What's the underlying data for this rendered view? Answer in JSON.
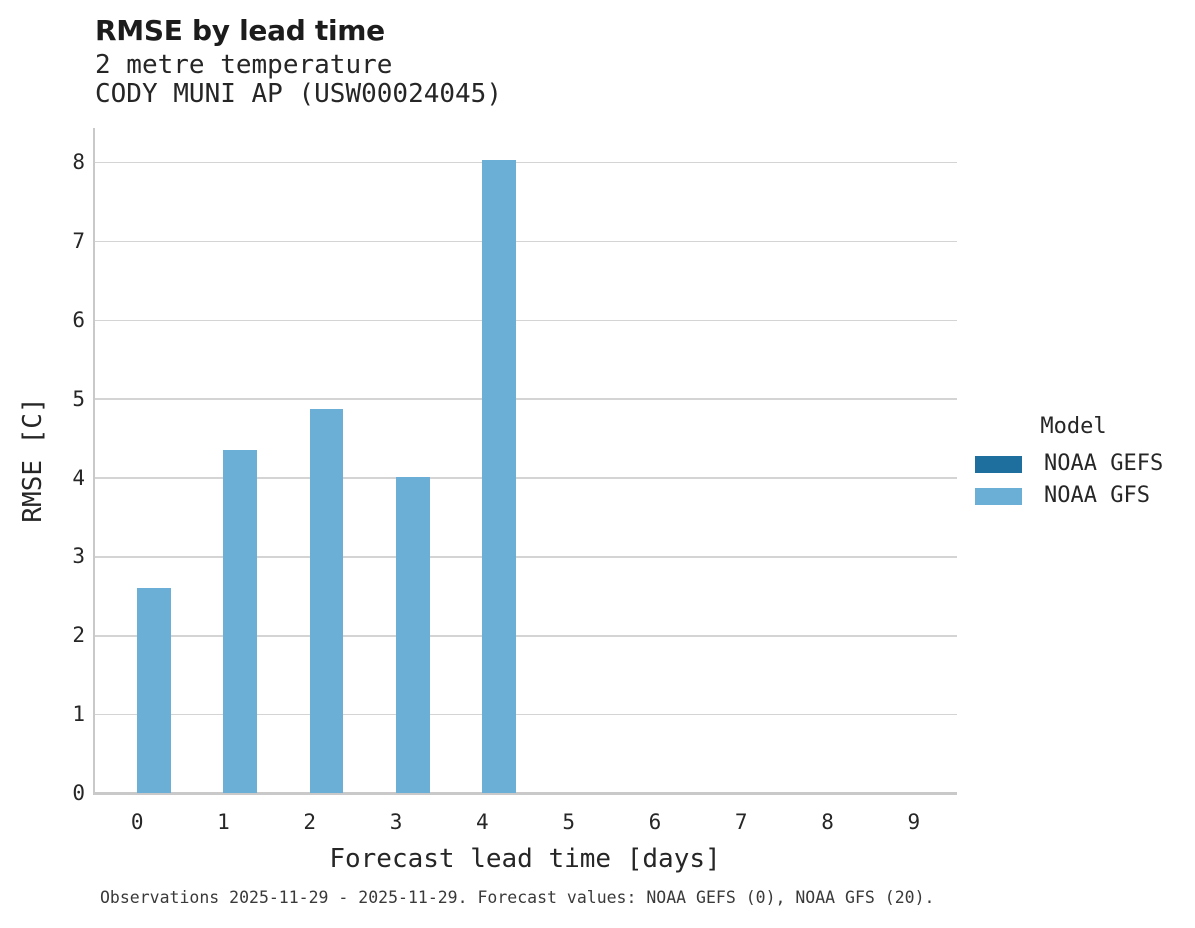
{
  "header": {
    "title": "RMSE by lead time",
    "subtitle_line1": "2 metre temperature",
    "subtitle_line2": "CODY MUNI AP (USW00024045)"
  },
  "chart_data": {
    "type": "bar",
    "title": "RMSE by lead time",
    "subtitle": [
      "2 metre temperature",
      "CODY MUNI AP (USW00024045)"
    ],
    "xlabel": "Forecast lead time [days]",
    "ylabel": "RMSE [C]",
    "categories": [
      0,
      1,
      2,
      3,
      4,
      5,
      6,
      7,
      8,
      9
    ],
    "series": [
      {
        "name": "NOAA GEFS",
        "color": "#1f6f9e",
        "values": [
          null,
          null,
          null,
          null,
          null,
          null,
          null,
          null,
          null,
          null
        ]
      },
      {
        "name": "NOAA GFS",
        "color": "#6bafd7",
        "values": [
          2.61,
          4.35,
          4.87,
          4.01,
          8.03,
          null,
          null,
          null,
          null,
          null
        ]
      }
    ],
    "ylim": [
      0,
      8.44
    ],
    "yticks": [
      0,
      1,
      2,
      3,
      4,
      5,
      6,
      7,
      8
    ],
    "grid": "horizontal",
    "legend_title": "Model",
    "legend_position": "right"
  },
  "legend": {
    "title": "Model",
    "items": [
      {
        "label": "NOAA GEFS",
        "color": "#1f6f9e"
      },
      {
        "label": "NOAA GFS",
        "color": "#6bafd7"
      }
    ]
  },
  "footer": {
    "text": "Observations 2025-11-29 - 2025-11-29. Forecast values: NOAA GEFS (0), NOAA GFS (20)."
  }
}
